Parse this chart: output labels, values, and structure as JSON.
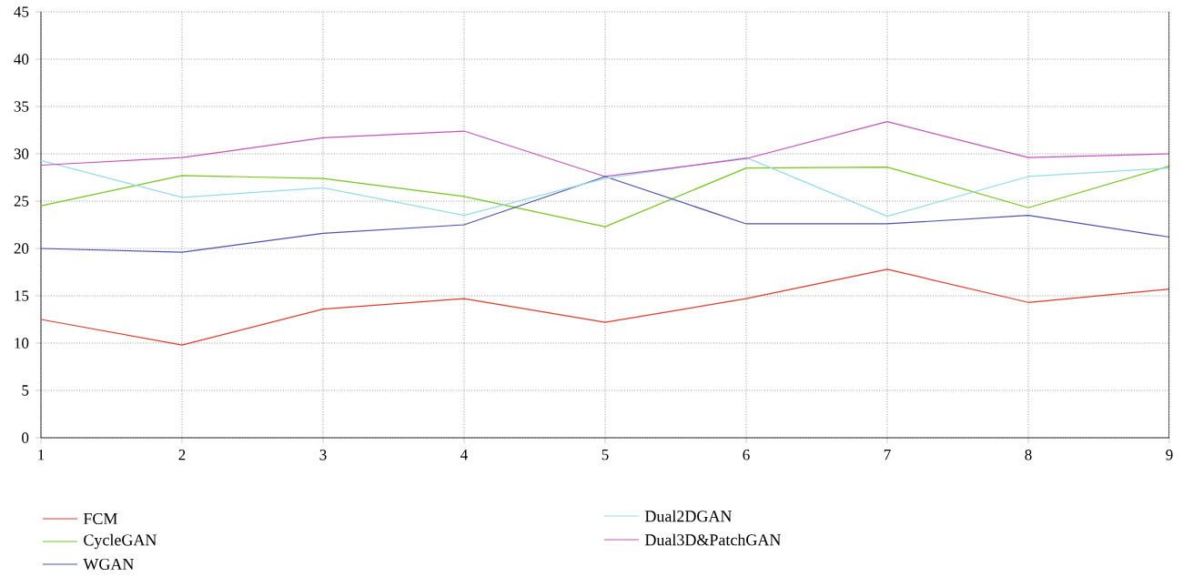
{
  "chart_data": {
    "type": "line",
    "x": [
      1,
      2,
      3,
      4,
      5,
      6,
      7,
      8,
      9
    ],
    "series": [
      {
        "name": "FCM",
        "color": "#e53a2c",
        "values": [
          12.5,
          9.8,
          13.6,
          14.7,
          12.2,
          14.7,
          17.8,
          14.3,
          15.7
        ]
      },
      {
        "name": "CycleGAN",
        "color": "#74c818",
        "values": [
          24.5,
          27.7,
          27.4,
          25.5,
          22.3,
          28.5,
          28.6,
          24.3,
          28.7
        ]
      },
      {
        "name": "WGAN",
        "color": "#4a52b2",
        "values": [
          20.0,
          19.6,
          21.6,
          22.5,
          27.6,
          22.6,
          22.6,
          23.5,
          21.2
        ]
      },
      {
        "name": "Dual2DGAN",
        "color": "#95dcea",
        "values": [
          29.3,
          25.4,
          26.4,
          23.5,
          27.4,
          29.6,
          23.4,
          27.6,
          28.5
        ]
      },
      {
        "name": "Dual3D&PatchGAN",
        "color": "#c852bc",
        "values": [
          28.8,
          29.6,
          31.7,
          32.4,
          27.6,
          29.5,
          33.4,
          29.6,
          30.0
        ]
      }
    ],
    "xlim": [
      1,
      9
    ],
    "xticks": [
      1,
      2,
      3,
      4,
      5,
      6,
      7,
      8,
      9
    ],
    "ylim": [
      0,
      45
    ],
    "yticks": [
      0,
      5,
      10,
      15,
      20,
      25,
      30,
      35,
      40,
      45
    ],
    "grid": true,
    "legend": "bottom",
    "marker": "none",
    "line_style": "solid"
  }
}
